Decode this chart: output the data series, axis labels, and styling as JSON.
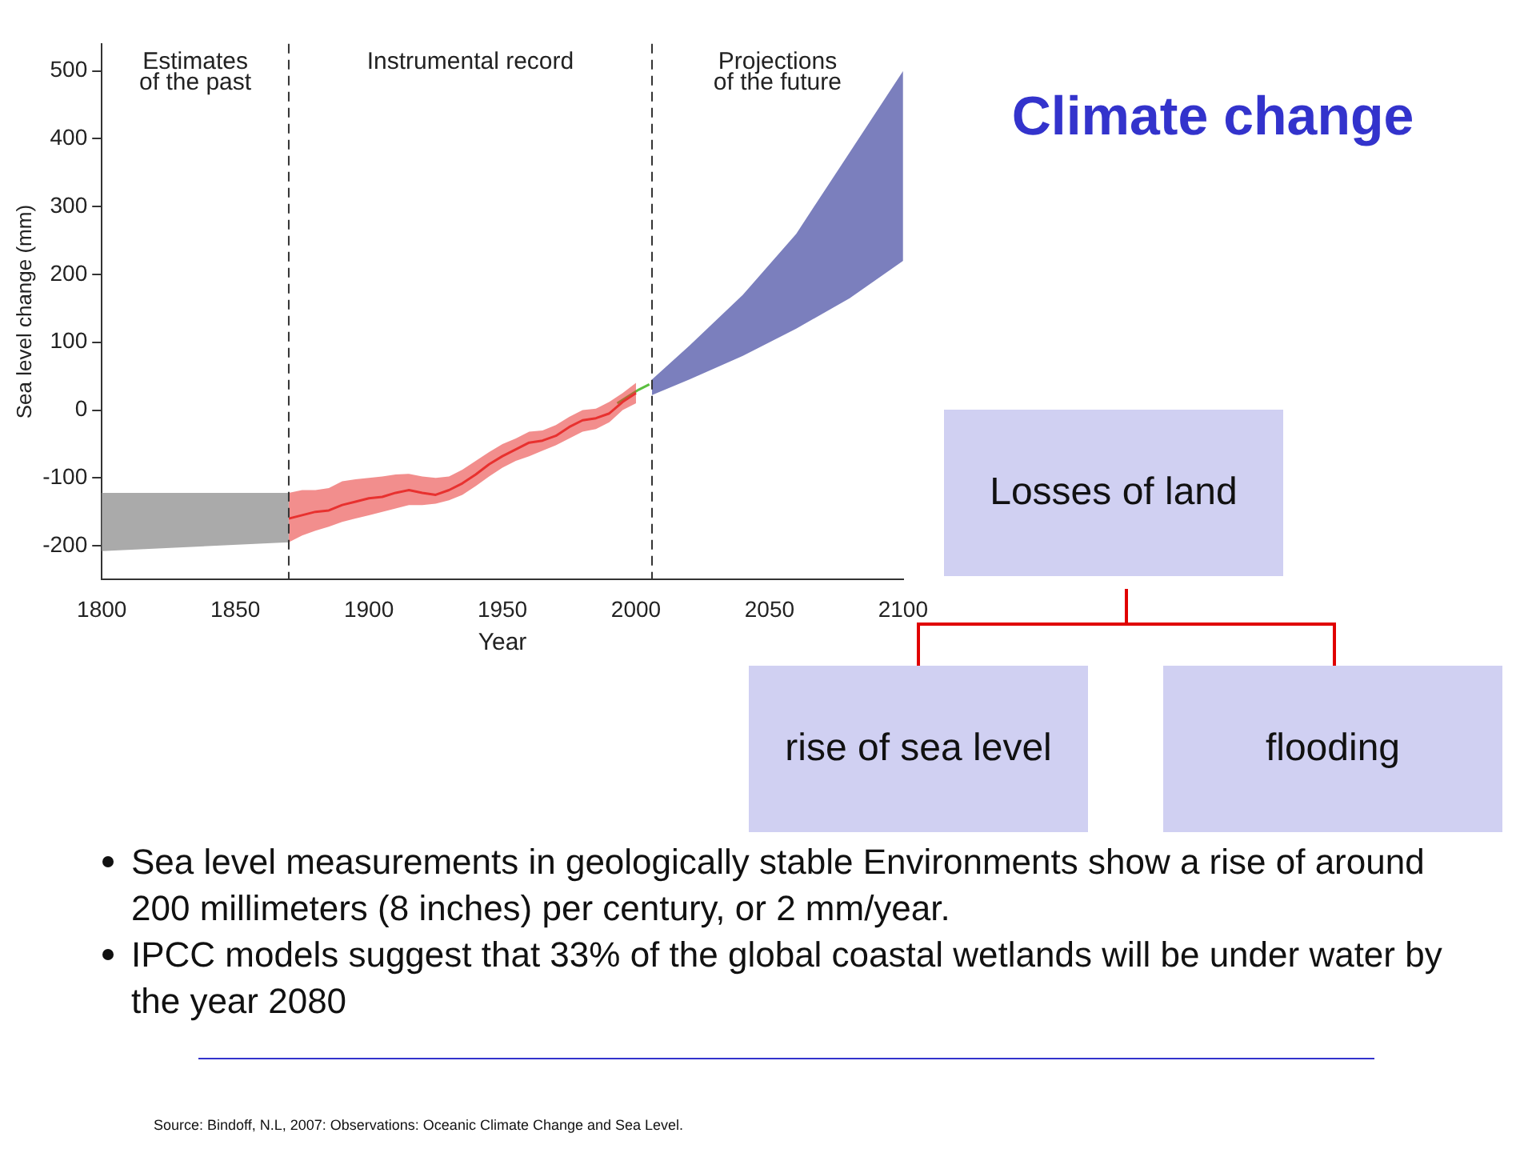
{
  "chart_data": {
    "type": "line",
    "title": "Climate change",
    "xlabel": "Year",
    "ylabel": "Sea level change (mm)",
    "xlim": [
      1800,
      2100
    ],
    "xticks": [
      1800,
      1850,
      1900,
      1950,
      2000,
      2050,
      2100
    ],
    "ylim": [
      -250,
      540
    ],
    "yticks": [
      -200,
      -100,
      0,
      100,
      200,
      300,
      400,
      500
    ],
    "grid": false,
    "legend": false,
    "marker": "none",
    "line_style": "solid",
    "series": [
      {
        "color": "#aaaaaa",
        "x": [
          1800,
          1870
        ],
        "values": [
          null,
          null
        ],
        "lower": [
          -208,
          -195
        ],
        "upper": [
          -122,
          -122
        ]
      },
      {
        "color": "#e8312f",
        "x": [
          1870,
          1875,
          1880,
          1885,
          1890,
          1895,
          1900,
          1905,
          1910,
          1915,
          1920,
          1925,
          1930,
          1935,
          1940,
          1945,
          1950,
          1955,
          1960,
          1965,
          1970,
          1975,
          1980,
          1985,
          1990,
          1995,
          2000
        ],
        "values": [
          -160,
          -155,
          -150,
          -148,
          -140,
          -135,
          -130,
          -128,
          -122,
          -118,
          -122,
          -125,
          -118,
          -108,
          -95,
          -80,
          -68,
          -58,
          -48,
          -45,
          -38,
          -25,
          -15,
          -12,
          -5,
          12,
          25
        ],
        "lower": [
          -195,
          -185,
          -178,
          -172,
          -165,
          -160,
          -155,
          -150,
          -145,
          -140,
          -140,
          -138,
          -133,
          -125,
          -112,
          -98,
          -85,
          -75,
          -68,
          -60,
          -52,
          -42,
          -32,
          -28,
          -18,
          0,
          10
        ],
        "upper": [
          -122,
          -118,
          -118,
          -115,
          -105,
          -102,
          -100,
          -98,
          -95,
          -94,
          -98,
          -100,
          -98,
          -88,
          -75,
          -62,
          -50,
          -42,
          -32,
          -30,
          -22,
          -10,
          0,
          2,
          12,
          25,
          40
        ]
      },
      {
        "color": "#5bbf3f",
        "x": [
          1993,
          1997,
          2001,
          2005
        ],
        "values": [
          10,
          20,
          30,
          38
        ]
      },
      {
        "color": "#7b7fbd",
        "x": [
          2006,
          2020,
          2040,
          2060,
          2080,
          2100
        ],
        "values": [
          null,
          null,
          null,
          null,
          null,
          null
        ],
        "lower": [
          22,
          45,
          80,
          120,
          165,
          220
        ],
        "upper": [
          45,
          95,
          170,
          260,
          380,
          500
        ]
      }
    ],
    "ref_lines": [
      {
        "axis": "x",
        "value": 1870,
        "color": "#333333",
        "line_style": "dashed"
      },
      {
        "axis": "x",
        "value": 2006,
        "color": "#333333",
        "line_style": "dashed"
      }
    ],
    "annotations": [
      "Estimates\nof the past",
      "Instrumental record",
      "Projections\nof the future",
      "Losses of land",
      "rise of sea level",
      "flooding",
      "Sea level  measurements in geologically stable Environments  show a rise of around  200 millimeters (8 inches) per century, or 2 mm/year.",
      "IPCC models  suggest  that  33% of the  global coastal  wetlands will be under water by  the year 2080",
      "Source: Bindoff, N.L, 2007: Observations: Oceanic Climate Change and Sea Level."
    ]
  }
}
